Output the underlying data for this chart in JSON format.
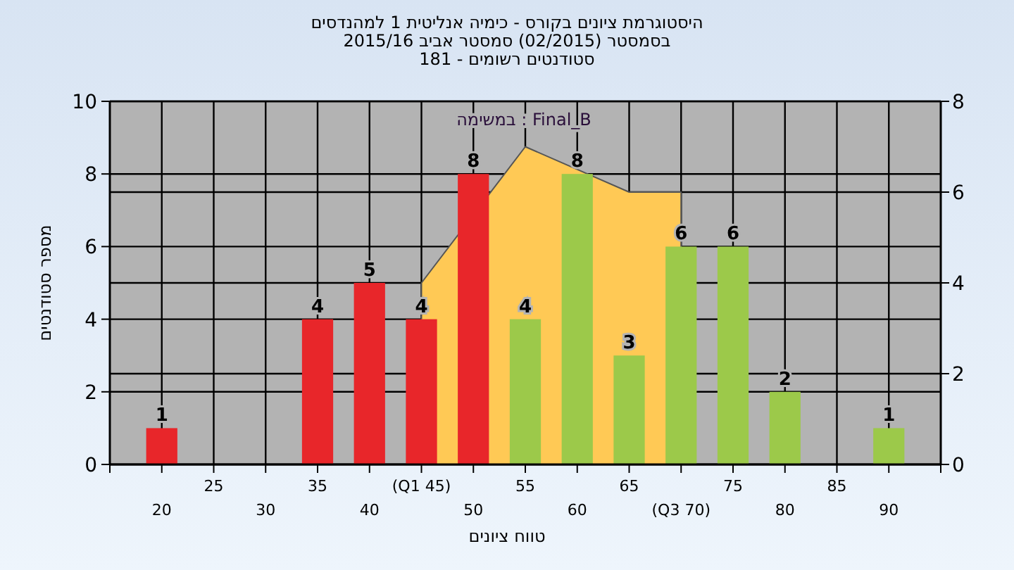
{
  "chart_data": {
    "type": "bar",
    "title": "היסטוגרמת ציונים בקורס - כימיה אנליטית 1 למהנדסים",
    "subtitle": "בסמסטר  (02/2015)  סמסטר אביב 2015/16",
    "annotations": [
      "סטודנטים רשומים - 181",
      "Final_B : במשימה"
    ],
    "xlabel": "טווח ציונים",
    "ylabel": "מספר סטודנטים",
    "categories": [
      "20",
      "25",
      "30",
      "35",
      "40",
      "(Q1 45)",
      "50",
      "55",
      "60",
      "65",
      "(Q3 70)",
      "75",
      "80",
      "85",
      "90"
    ],
    "ylim": [
      0,
      10
    ],
    "yticks": [
      0,
      2,
      4,
      6,
      8,
      10
    ],
    "y2lim": [
      0,
      8
    ],
    "y2ticks": [
      0,
      2,
      4,
      6,
      8
    ],
    "grid": true,
    "series": [
      {
        "values": [
          1,
          0,
          0,
          4,
          5,
          4,
          8,
          4,
          8,
          3,
          6,
          6,
          2,
          0,
          1
        ],
        "value_labels": [
          "1",
          null,
          null,
          "4",
          "5",
          "4",
          "8",
          "4",
          "8",
          "3",
          "6",
          "6",
          "2",
          null,
          "1"
        ],
        "colors": [
          "#e8262a",
          "#e8262a",
          "#e8262a",
          "#e8262a",
          "#e8262a",
          "#e8262a",
          "#e8262a",
          "#9cc94a",
          "#9cc94a",
          "#9cc94a",
          "#9cc94a",
          "#9cc94a",
          "#9cc94a",
          "#9cc94a",
          "#9cc94a"
        ]
      },
      {
        "type": "area",
        "axis": "y2",
        "color": "#ffc955",
        "values": [
          null,
          null,
          null,
          null,
          null,
          4,
          null,
          7,
          null,
          6,
          6,
          null,
          null,
          null,
          null
        ]
      }
    ]
  }
}
